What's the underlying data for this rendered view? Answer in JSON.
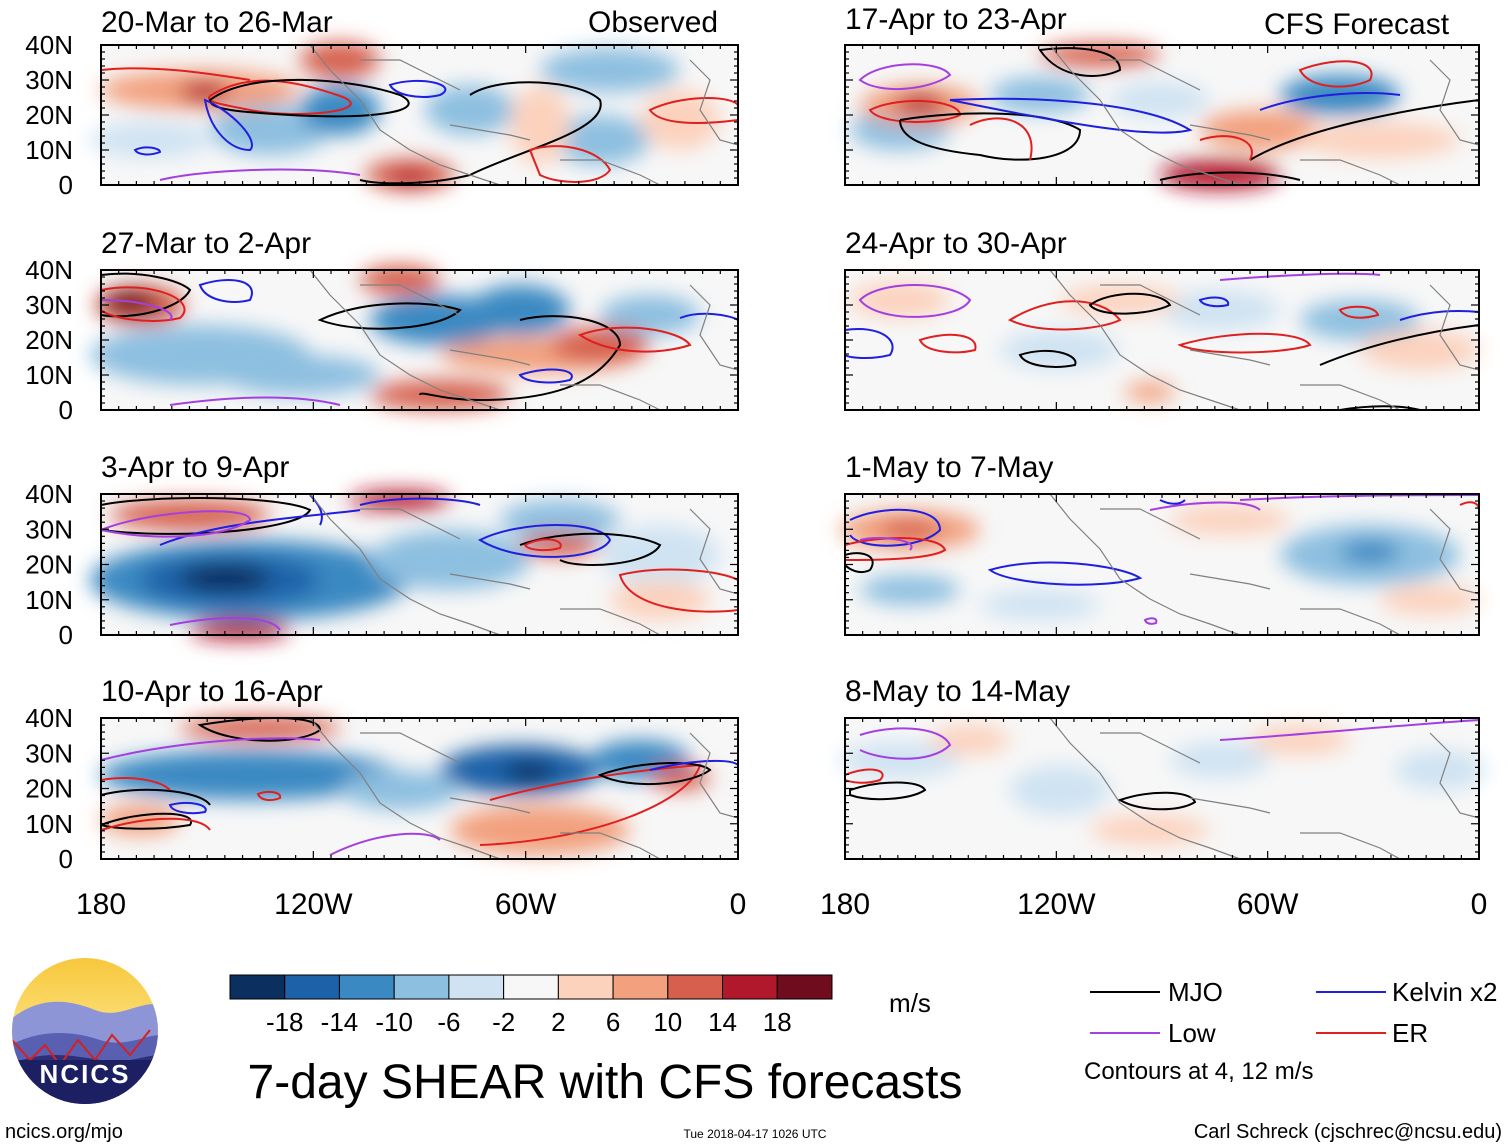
{
  "chart_data": {
    "type": "heatmap",
    "title": "7-day SHEAR with CFS forecasts",
    "units": "m/s",
    "x_ticks": [
      "180",
      "120W",
      "60W",
      "0"
    ],
    "y_ticks": [
      "40N",
      "30N",
      "20N",
      "10N",
      "0"
    ],
    "xlim": [
      -180,
      0
    ],
    "ylim": [
      0,
      40
    ],
    "left_column_label": "Observed",
    "right_column_label": "CFS Forecast",
    "panels": [
      {
        "id": "obs1",
        "title": "20-Mar to 26-Mar",
        "source": "Observed"
      },
      {
        "id": "obs2",
        "title": "27-Mar to 2-Apr",
        "source": "Observed"
      },
      {
        "id": "obs3",
        "title": "3-Apr to 9-Apr",
        "source": "Observed"
      },
      {
        "id": "obs4",
        "title": "10-Apr to 16-Apr",
        "source": "Observed"
      },
      {
        "id": "fc1",
        "title": "17-Apr to 23-Apr",
        "source": "CFS Forecast"
      },
      {
        "id": "fc2",
        "title": "24-Apr to 30-Apr",
        "source": "CFS Forecast"
      },
      {
        "id": "fc3",
        "title": "1-May to 7-May",
        "source": "CFS Forecast"
      },
      {
        "id": "fc4",
        "title": "8-May to 14-May",
        "source": "CFS Forecast"
      }
    ],
    "colorbar": {
      "labels": [
        "-18",
        "-14",
        "-10",
        "-6",
        "-2",
        "2",
        "6",
        "10",
        "14",
        "18"
      ],
      "colors": [
        "#0b2f5e",
        "#1d62a8",
        "#3a89c2",
        "#8dbfe0",
        "#cfe3f2",
        "#f7f7f7",
        "#fcd2bd",
        "#f2a07e",
        "#d6604d",
        "#b2182b",
        "#6f0d1e"
      ]
    },
    "legend": [
      {
        "label": "MJO",
        "color": "#000000"
      },
      {
        "label": "Kelvin x2",
        "color": "#1f1fe0"
      },
      {
        "label": "Low",
        "color": "#a43fe0"
      },
      {
        "label": "ER",
        "color": "#e01f1f"
      }
    ],
    "contour_note": "Contours at 4, 12 m/s"
  },
  "logo": {
    "text": "NCICS"
  },
  "footer": {
    "website": "ncics.org/mjo",
    "timestamp": "Tue 2018-04-17 1026 UTC",
    "credit": "Carl Schreck (cjschrec@ncsu.edu)"
  }
}
